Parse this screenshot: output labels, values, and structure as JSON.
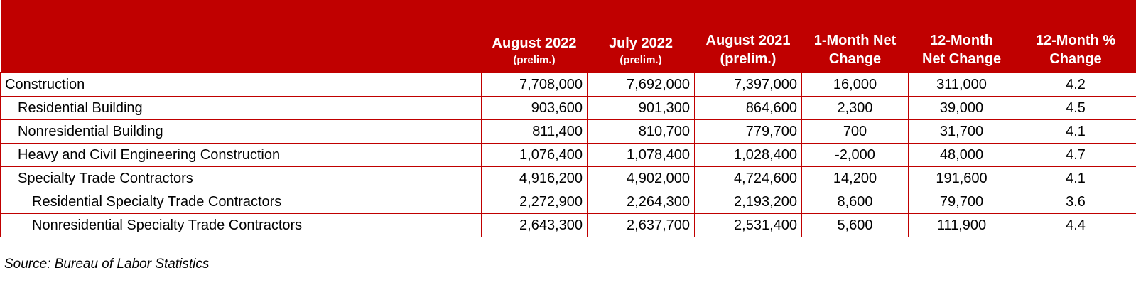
{
  "chart_data": {
    "type": "table",
    "columns": [
      {
        "line1": "",
        "line2": ""
      },
      {
        "line1": "August 2022",
        "line2": "(prelim.)",
        "sub_small": true
      },
      {
        "line1": "July 2022",
        "line2": "(prelim.)",
        "sub_small": true
      },
      {
        "line1": "August 2021",
        "line2": "(prelim.)",
        "sub_small": false
      },
      {
        "line1": "1-Month Net",
        "line2": "Change",
        "sub_small": false
      },
      {
        "line1": "12-Month",
        "line2": "Net Change",
        "sub_small": false
      },
      {
        "line1": "12-Month %",
        "line2": "Change",
        "sub_small": false
      }
    ],
    "rows": [
      {
        "label": "Construction",
        "level": 0,
        "aug_2022": "7,708,000",
        "jul_2022": "7,692,000",
        "aug_2021": "7,397,000",
        "one_month_net": "16,000",
        "twelve_month_net": "311,000",
        "twelve_month_pct": "4.2"
      },
      {
        "label": "Residential Building",
        "level": 1,
        "aug_2022": "903,600",
        "jul_2022": "901,300",
        "aug_2021": "864,600",
        "one_month_net": "2,300",
        "twelve_month_net": "39,000",
        "twelve_month_pct": "4.5"
      },
      {
        "label": "Nonresidential Building",
        "level": 1,
        "aug_2022": "811,400",
        "jul_2022": "810,700",
        "aug_2021": "779,700",
        "one_month_net": "700",
        "twelve_month_net": "31,700",
        "twelve_month_pct": "4.1"
      },
      {
        "label": "Heavy and Civil Engineering Construction",
        "level": 1,
        "aug_2022": "1,076,400",
        "jul_2022": "1,078,400",
        "aug_2021": "1,028,400",
        "one_month_net": "-2,000",
        "twelve_month_net": "48,000",
        "twelve_month_pct": "4.7"
      },
      {
        "label": "Specialty Trade Contractors",
        "level": 1,
        "aug_2022": "4,916,200",
        "jul_2022": "4,902,000",
        "aug_2021": "4,724,600",
        "one_month_net": "14,200",
        "twelve_month_net": "191,600",
        "twelve_month_pct": "4.1"
      },
      {
        "label": "Residential Specialty Trade Contractors",
        "level": 2,
        "aug_2022": "2,272,900",
        "jul_2022": "2,264,300",
        "aug_2021": "2,193,200",
        "one_month_net": "8,600",
        "twelve_month_net": "79,700",
        "twelve_month_pct": "3.6"
      },
      {
        "label": "Nonresidential Specialty Trade Contractors",
        "level": 2,
        "aug_2022": "2,643,300",
        "jul_2022": "2,637,700",
        "aug_2021": "2,531,400",
        "one_month_net": "5,600",
        "twelve_month_net": "111,900",
        "twelve_month_pct": "4.4"
      }
    ],
    "source": "Source: Bureau of Labor Statistics"
  },
  "colors": {
    "header_background": "#c00000",
    "header_text": "#ffffff",
    "border": "#c00000"
  }
}
